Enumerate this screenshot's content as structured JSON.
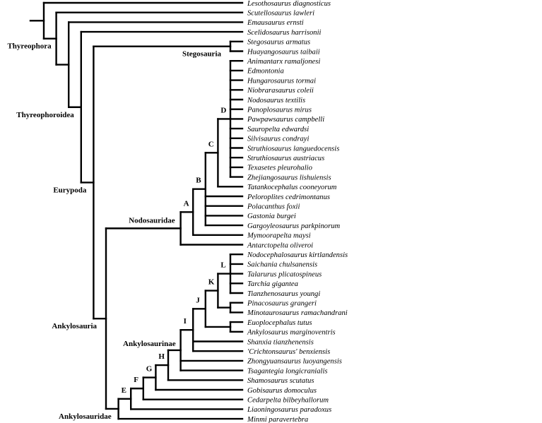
{
  "colors": {
    "lines": "#000000",
    "background": "#ffffff"
  },
  "tree": {
    "children": [
      {
        "leaf": "Lesothosaurus diagnosticus"
      },
      {
        "label": "Thyreophora",
        "children": [
          {
            "leaf": "Scutellosaurus lawleri"
          },
          {
            "children": [
              {
                "leaf": "Emausaurus ernsti"
              },
              {
                "label": "Thyreophoroidea",
                "children": [
                  {
                    "leaf": "Scelidosaurus harrisonii"
                  },
                  {
                    "label": "Eurypoda",
                    "children": [
                      {
                        "label": "Stegosauria",
                        "children": [
                          {
                            "leaf": "Stegosaurus armatus"
                          },
                          {
                            "leaf": "Huayangosaurus taibaii"
                          }
                        ]
                      },
                      {
                        "label": "Ankylosauria",
                        "children": [
                          {
                            "label": "Nodosauridae",
                            "children": [
                              {
                                "label": "A",
                                "children": [
                                  {
                                    "label": "B",
                                    "children": [
                                      {
                                        "label": "C",
                                        "children": [
                                          {
                                            "label": "D",
                                            "children": [
                                              {
                                                "leaf": "Animantarx ramaljonesi"
                                              },
                                              {
                                                "leaf": "Edmontonia"
                                              },
                                              {
                                                "leaf": "Hungarosaurus tormai"
                                              },
                                              {
                                                "leaf": "Niobrarasaurus coleii"
                                              },
                                              {
                                                "leaf": "Nodosaurus textilis"
                                              },
                                              {
                                                "leaf": "Panoplosaurus mirus"
                                              },
                                              {
                                                "leaf": "Pawpawsaurus campbelli"
                                              },
                                              {
                                                "leaf": "Sauropelta edwardsi"
                                              },
                                              {
                                                "leaf": "Silvisaurus condrayi"
                                              },
                                              {
                                                "leaf": "Struthiosaurus languedocensis"
                                              },
                                              {
                                                "leaf": "Struthiosaurus austriacus"
                                              },
                                              {
                                                "leaf": "Texasetes pleurohalio"
                                              },
                                              {
                                                "leaf": "Zhejiangosaurus lishuiensis"
                                              }
                                            ]
                                          },
                                          {
                                            "leaf": "Tatankocephalus cooneyorum"
                                          }
                                        ]
                                      },
                                      {
                                        "leaf": "Peloroplites cedrimontanus"
                                      },
                                      {
                                        "leaf": "Polacanthus foxii"
                                      },
                                      {
                                        "leaf": "Gastonia burgei"
                                      },
                                      {
                                        "leaf": "Gargoyleosaurus parkpinorum"
                                      }
                                    ]
                                  },
                                  {
                                    "leaf": "Mymoorapelta maysi"
                                  }
                                ]
                              },
                              {
                                "leaf": "Antarctopelta oliveroi"
                              }
                            ]
                          },
                          {
                            "label": "Ankylosauridae",
                            "children": [
                              {
                                "label": "E",
                                "children": [
                                  {
                                    "label": "F",
                                    "children": [
                                      {
                                        "label": "G",
                                        "children": [
                                          {
                                            "label": "H",
                                            "children": [
                                              {
                                                "label": "Ankylosaurinae",
                                                "children": [
                                                  {
                                                    "label": "I",
                                                    "children": [
                                                      {
                                                        "label": "J",
                                                        "children": [
                                                          {
                                                            "label": "K",
                                                            "children": [
                                                              {
                                                                "label": "L",
                                                                "children": [
                                                                  {
                                                                    "leaf": "Nodocephalosaurus kirtlandensis"
                                                                  },
                                                                  {
                                                                    "leaf": "Saichania chulsanensis"
                                                                  },
                                                                  {
                                                                    "leaf": "Talarurus plicatospineus"
                                                                  },
                                                                  {
                                                                    "leaf": "Tarchia gigantea"
                                                                  },
                                                                  {
                                                                    "leaf": "Tianzhenosaurus youngi"
                                                                  }
                                                                ]
                                                              },
                                                              {
                                                                "children": [
                                                                  {
                                                                    "leaf": "Pinacosaurus grangeri"
                                                                  },
                                                                  {
                                                                    "leaf": "Minotaurosaurus ramachandrani"
                                                                  }
                                                                ]
                                                              }
                                                            ]
                                                          },
                                                          {
                                                            "children": [
                                                              {
                                                                "leaf": "Euoplocephalus tutus"
                                                              },
                                                              {
                                                                "leaf": "Ankylosaurus marginoventris"
                                                              }
                                                            ]
                                                          }
                                                        ]
                                                      },
                                                      {
                                                        "leaf": "Shanxia tianzhenensis"
                                                      },
                                                      {
                                                        "leaf": "'Crichtonsaurus' benxiensis"
                                                      }
                                                    ]
                                                  },
                                                  {
                                                    "leaf": "Zhongyuansaurus luoyangensis"
                                                  },
                                                  {
                                                    "leaf": "Tsagantegia longicranialis"
                                                  }
                                                ]
                                              },
                                              {
                                                "leaf": "Shamosaurus scutatus"
                                              }
                                            ]
                                          },
                                          {
                                            "leaf": "Gobisaurus domoculus"
                                          }
                                        ]
                                      },
                                      {
                                        "leaf": "Cedarpelta bilbeyhallorum"
                                      }
                                    ]
                                  },
                                  {
                                    "leaf": "Liaoningosaurus paradoxus"
                                  }
                                ]
                              },
                              {
                                "leaf": "Minmi paravertebra"
                              }
                            ]
                          }
                        ]
                      }
                    ]
                  }
                ]
              }
            ]
          }
        ]
      }
    ]
  }
}
